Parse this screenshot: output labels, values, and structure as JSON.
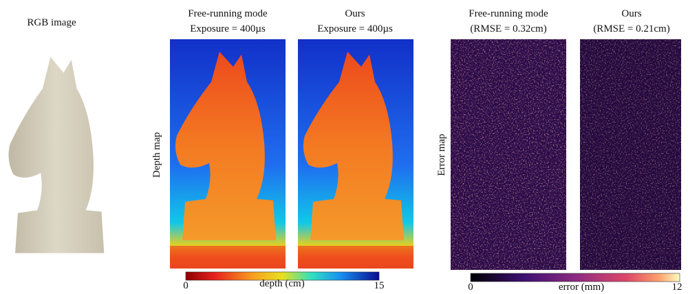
{
  "rgb_label": "RGB image",
  "depth": {
    "row_label": "Depth map",
    "panels": [
      {
        "title": "Free-running mode",
        "subtitle": "Exposure = 400µs"
      },
      {
        "title": "Ours",
        "subtitle": "Exposure = 400µs"
      }
    ],
    "colorbar": {
      "min": 0,
      "label": "depth (cm)",
      "max": 15
    }
  },
  "error": {
    "row_label": "Error map",
    "panels": [
      {
        "title": "Free-running mode",
        "subtitle": "(RMSE = 0.32cm)"
      },
      {
        "title": "Ours",
        "subtitle": "(RMSE = 0.21cm)"
      }
    ],
    "colorbar": {
      "min": 0,
      "label": "error (mm)",
      "max": 12
    }
  }
}
